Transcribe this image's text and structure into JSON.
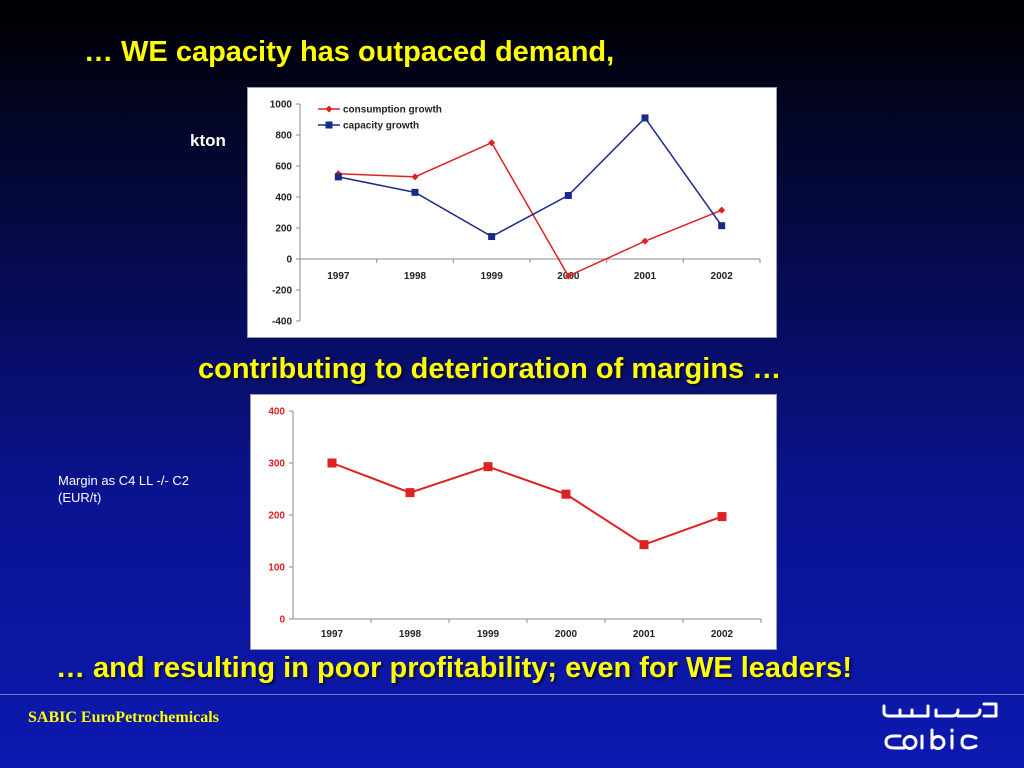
{
  "slide": {
    "heading_top": "… WE capacity has outpaced demand,",
    "heading_middle": "contributing to deterioration of margins …",
    "heading_bottom": "… and resulting in poor profitability; even for WE leaders!",
    "unit_label_top": "kton",
    "unit_label_bottom_line1": "Margin as C4 LL -/- C2",
    "unit_label_bottom_line2": "(EUR/t)",
    "footer_brand": "SABIC EuroPetrochemicals",
    "logo_icon": "sabic-logo-icon",
    "accent_color": "#ffff00"
  },
  "chart_data": [
    {
      "type": "line",
      "categories": [
        "1997",
        "1998",
        "1999",
        "2000",
        "2001",
        "2002"
      ],
      "series": [
        {
          "name": "consumption growth",
          "values": [
            550,
            530,
            750,
            -110,
            115,
            315
          ],
          "color": "#dd2222",
          "marker": "diamond"
        },
        {
          "name": "capacity growth",
          "values": [
            530,
            430,
            145,
            410,
            910,
            215
          ],
          "color": "#1a2a8c",
          "marker": "square"
        }
      ],
      "yticks": [
        "1000",
        "800",
        "600",
        "400",
        "200",
        "0",
        "-200",
        "-400"
      ],
      "ylim": [
        -400,
        1000
      ],
      "legend_position": "top-left",
      "grid": false
    },
    {
      "type": "line",
      "categories": [
        "1997",
        "1998",
        "1999",
        "2000",
        "2001",
        "2002"
      ],
      "series": [
        {
          "values": [
            300,
            243,
            293,
            240,
            143,
            197
          ],
          "color": "#dd2222",
          "marker": "square"
        }
      ],
      "yticks": [
        "400",
        "300",
        "200",
        "100",
        "0"
      ],
      "ylim": [
        0,
        400
      ],
      "grid": false
    }
  ]
}
